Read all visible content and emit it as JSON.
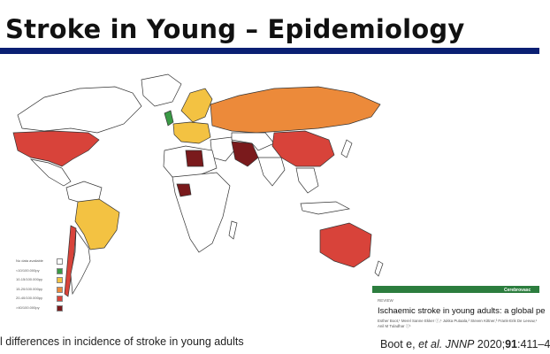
{
  "slide": {
    "title": "Stroke in Young – Epidemiology",
    "caption": "l differences in incidence of stroke in young adults"
  },
  "legend": [
    {
      "label": "No data available",
      "color": "#ffffff"
    },
    {
      "label": "<10/100.000py",
      "color": "#3a9a45"
    },
    {
      "label": "10-15/100.000py",
      "color": "#f3c242"
    },
    {
      "label": "15-20/100.000py",
      "color": "#ec8a3a"
    },
    {
      "label": "20-40/100.000py",
      "color": "#d8433a"
    },
    {
      "label": ">40/100.000py",
      "color": "#7a1a1c"
    }
  ],
  "regions": [
    {
      "name": "United States",
      "level": 4
    },
    {
      "name": "Brazil",
      "level": 2
    },
    {
      "name": "Chile",
      "level": 4
    },
    {
      "name": "Russia",
      "level": 3
    },
    {
      "name": "China",
      "level": 4
    },
    {
      "name": "Iran",
      "level": 5
    },
    {
      "name": "Libya",
      "level": 5
    },
    {
      "name": "Nigeria",
      "level": 5
    },
    {
      "name": "Australia",
      "level": 4
    },
    {
      "name": "Scandinavia",
      "level": 2
    },
    {
      "name": "United Kingdom",
      "level": 1
    }
  ],
  "paper": {
    "journal": "Cerebrovasc",
    "section": "REVIEW",
    "title": "Ischaemic stroke in young adults: a global pe",
    "authors": "Esther Boot,¹ Merel Sanne Ekker ⓘ,¹ Jukka Putaala,² Steven Kittner,³ Frank-Erik De Leeuw,¹ Anil M Tuladhar ⓘ¹"
  },
  "citation": {
    "authors": "Boot e, ",
    "etal": "et al.",
    "journal": " JNNP",
    "year": " 2020;",
    "volume": "91",
    "pages": ":411–4"
  }
}
